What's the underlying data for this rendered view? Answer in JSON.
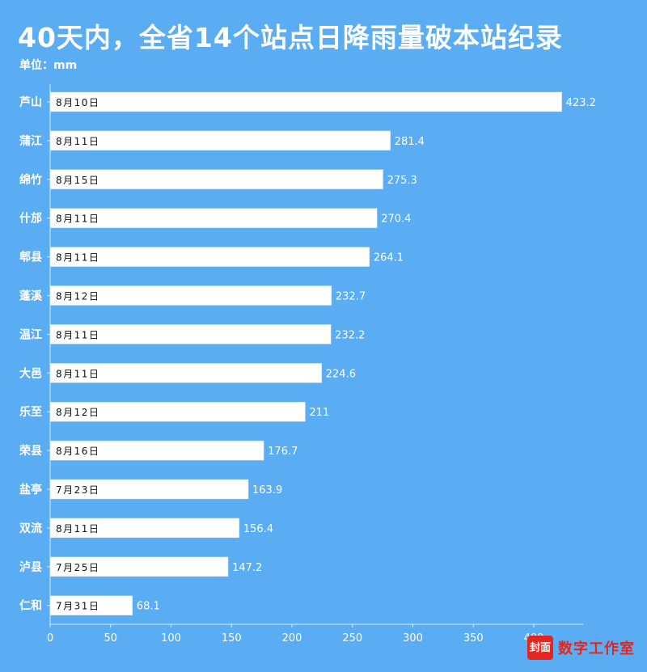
{
  "title": "40天内，全省14个站点日降雨量破本站纪录",
  "unit_label": "单位：mm",
  "branding": {
    "logo_text": "封面",
    "name": "数字工作室"
  },
  "colors": {
    "background": "#5aacf3",
    "bar": "#ffffff",
    "brand": "#e3261f"
  },
  "chart_data": {
    "type": "bar",
    "orientation": "horizontal",
    "categories": [
      "芦山",
      "蒲江",
      "绵竹",
      "什邡",
      "郫县",
      "蓬溪",
      "温江",
      "大邑",
      "乐至",
      "荣县",
      "盐亭",
      "双流",
      "泸县",
      "仁和"
    ],
    "values": [
      423.2,
      281.4,
      275.3,
      270.4,
      264.1,
      232.7,
      232.2,
      224.6,
      211,
      176.7,
      163.9,
      156.4,
      147.2,
      68.1
    ],
    "dates": [
      "8月10日",
      "8月11日",
      "8月15日",
      "8月11日",
      "8月11日",
      "8月12日",
      "8月11日",
      "8月11日",
      "8月12日",
      "8月16日",
      "7月23日",
      "8月11日",
      "7月25日",
      "7月31日"
    ],
    "xlim": [
      0,
      450
    ],
    "xticks": [
      0,
      50,
      100,
      150,
      200,
      250,
      300,
      350,
      400
    ],
    "grid": false
  }
}
